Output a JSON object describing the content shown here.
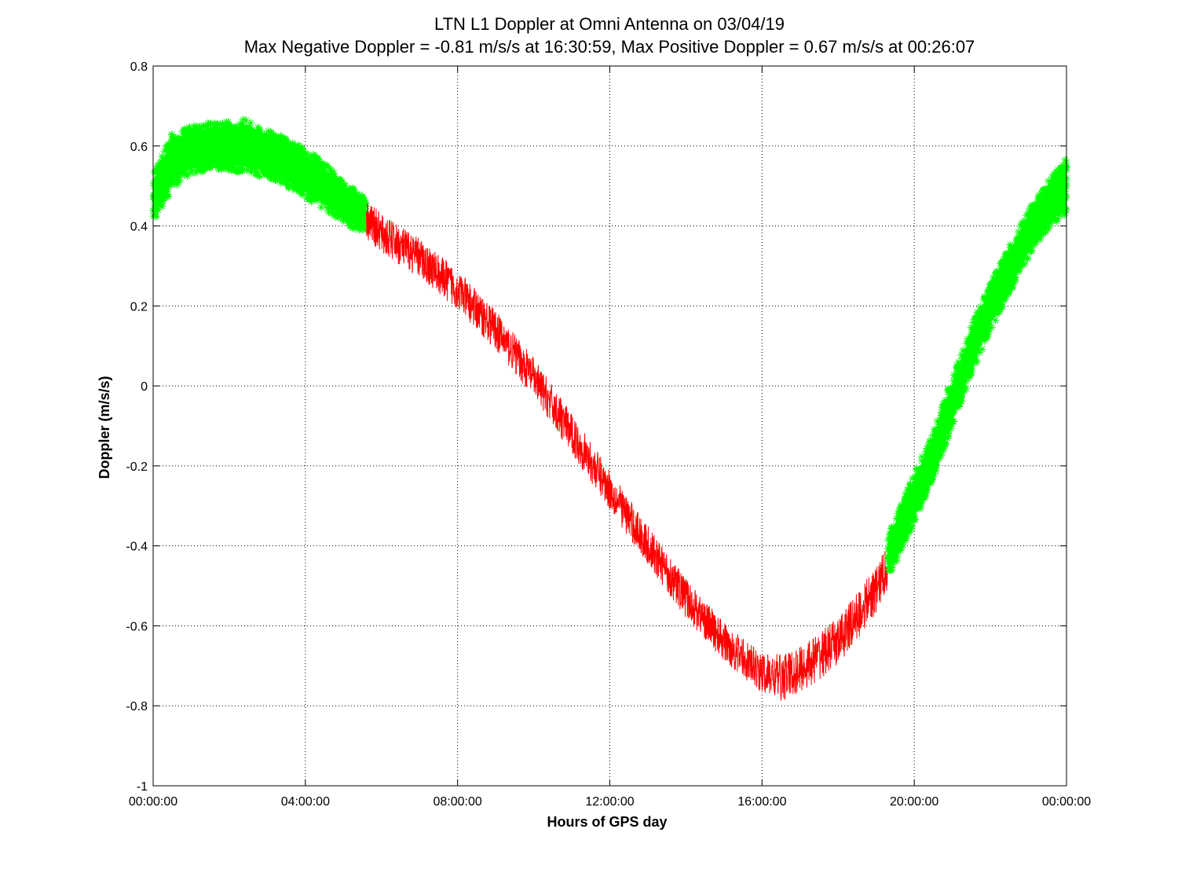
{
  "chart_data": {
    "type": "line",
    "title": "LTN  L1 Doppler at Omni Antenna on 03/04/19",
    "subtitle": "Max Negative Doppler = -0.81 m/s/s  at 16:30:59,   Max Positive Doppler = 0.67 m/s/s  at 00:26:07",
    "xlabel": "Hours of GPS day",
    "ylabel": "Doppler (m/s/s)",
    "xlim": [
      0,
      24
    ],
    "ylim": [
      -1,
      0.8
    ],
    "grid": true,
    "x_tick_values": [
      0,
      4,
      8,
      12,
      16,
      20,
      24
    ],
    "x_tick_labels": [
      "00:00:00",
      "04:00:00",
      "08:00:00",
      "12:00:00",
      "16:00:00",
      "20:00:00",
      "00:00:00"
    ],
    "y_tick_values": [
      0.8,
      0.6,
      0.4,
      0.2,
      0,
      -0.2,
      -0.4,
      -0.6,
      -0.8,
      -1
    ],
    "y_tick_labels": [
      "0.8",
      "0.6",
      "0.4",
      "0.2",
      "0",
      "-0.2",
      "-0.4",
      "-0.6",
      "-0.8",
      "-1"
    ],
    "series": [
      {
        "color": "#00ff00",
        "marker": "asterisk",
        "segment": "0:00-5:40",
        "x": [
          0.0,
          0.5,
          1.0,
          1.5,
          2.0,
          2.5,
          3.0,
          3.5,
          4.0,
          4.5,
          5.0,
          5.6
        ],
        "y_center": [
          0.47,
          0.56,
          0.59,
          0.6,
          0.6,
          0.6,
          0.58,
          0.56,
          0.53,
          0.5,
          0.46,
          0.42
        ],
        "y_halfwidth": [
          0.06,
          0.07,
          0.06,
          0.06,
          0.06,
          0.07,
          0.06,
          0.06,
          0.06,
          0.06,
          0.05,
          0.05
        ]
      },
      {
        "color": "#ff0000",
        "marker": "line",
        "segment": "5:40-19:20",
        "x": [
          5.6,
          6.0,
          7.0,
          8.0,
          9.0,
          10.0,
          11.0,
          12.0,
          13.0,
          14.0,
          15.0,
          16.0,
          16.5,
          17.0,
          18.0,
          19.0,
          19.3
        ],
        "y_center": [
          0.42,
          0.38,
          0.32,
          0.24,
          0.14,
          0.02,
          -0.12,
          -0.26,
          -0.4,
          -0.53,
          -0.64,
          -0.72,
          -0.73,
          -0.71,
          -0.64,
          -0.51,
          -0.45
        ],
        "y_halfwidth": [
          0.05,
          0.05,
          0.05,
          0.05,
          0.05,
          0.05,
          0.05,
          0.05,
          0.05,
          0.05,
          0.05,
          0.05,
          0.06,
          0.06,
          0.06,
          0.06,
          0.06
        ]
      },
      {
        "color": "#00ff00",
        "marker": "asterisk",
        "segment": "19:20-24:00",
        "x": [
          19.3,
          19.5,
          20.0,
          20.5,
          21.0,
          21.5,
          22.0,
          22.5,
          23.0,
          23.5,
          24.0
        ],
        "y_center": [
          -0.43,
          -0.39,
          -0.28,
          -0.17,
          -0.04,
          0.09,
          0.2,
          0.29,
          0.38,
          0.45,
          0.5
        ],
        "y_halfwidth": [
          0.05,
          0.06,
          0.06,
          0.06,
          0.06,
          0.06,
          0.06,
          0.06,
          0.06,
          0.06,
          0.07
        ]
      }
    ]
  }
}
